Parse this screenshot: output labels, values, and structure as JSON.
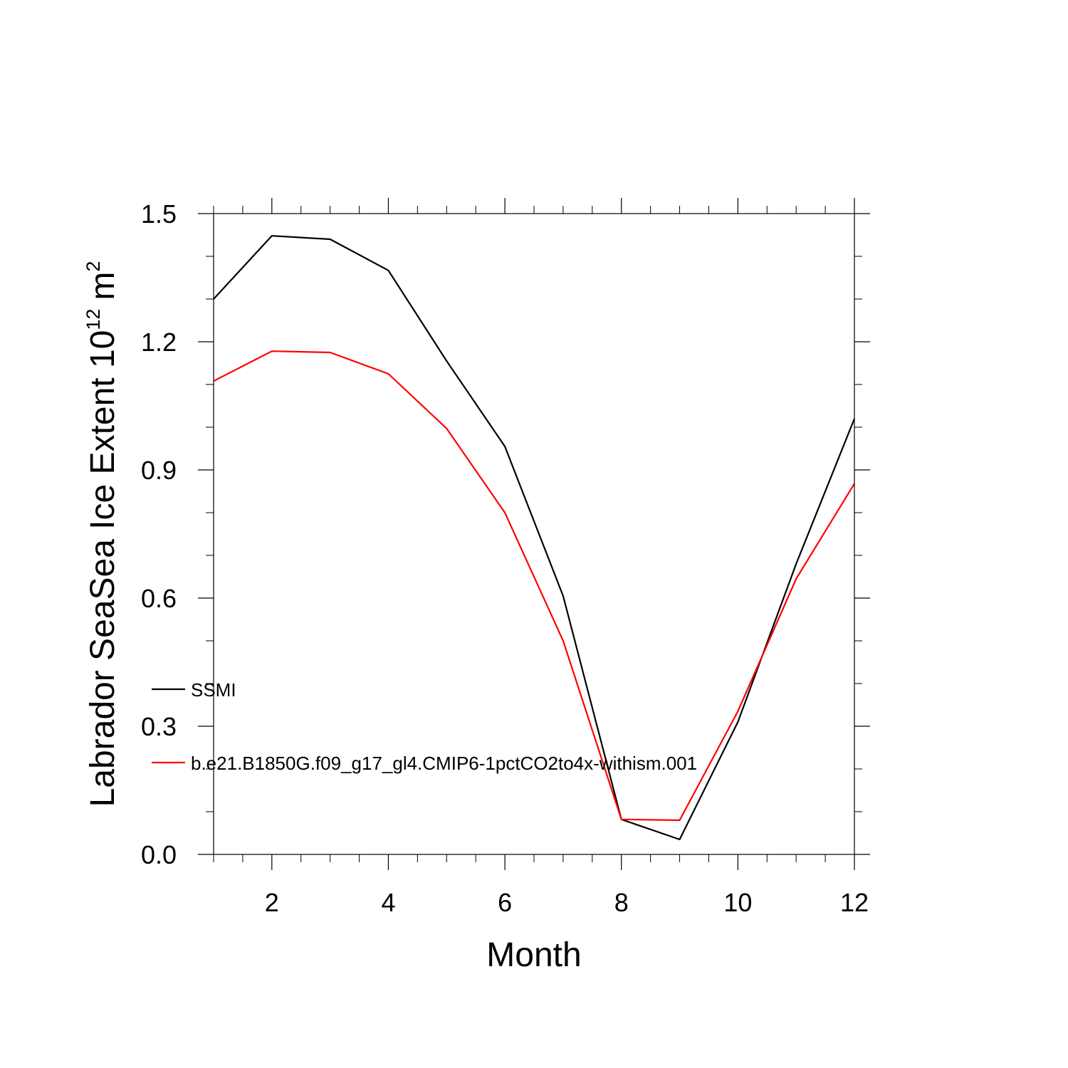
{
  "chart_data": {
    "type": "line",
    "title": "",
    "xlabel": "Month",
    "ylabel": "Labrador SeaSea Ice Extent 10",
    "ylabel_superscript": "12",
    "ylabel_unit": "m",
    "ylabel_unit_superscript": "2",
    "xlim": [
      1,
      12
    ],
    "ylim": [
      0,
      1.5
    ],
    "x_ticks": [
      2,
      4,
      6,
      8,
      10,
      12
    ],
    "x_tick_labels": [
      "2",
      "4",
      "6",
      "8",
      "10",
      "12"
    ],
    "y_ticks": [
      0,
      0.3,
      0.6,
      0.9,
      1.2,
      1.5
    ],
    "y_tick_labels": [
      "0.0",
      "0.3",
      "0.6",
      "0.9",
      "1.2",
      "1.5"
    ],
    "grid": false,
    "legend_position": "lower-left",
    "x": [
      1,
      2,
      3,
      4,
      5,
      6,
      7,
      8,
      9,
      10,
      11,
      12
    ],
    "series": [
      {
        "name": "SSMI",
        "color": "#000000",
        "values": [
          1.3,
          1.448,
          1.44,
          1.367,
          1.155,
          0.955,
          0.605,
          0.082,
          0.035,
          0.31,
          0.68,
          1.02
        ]
      },
      {
        "name": "b.e21.B1850G.f09_g17_gl4.CMIP6-1pctCO2to4x-withism.001",
        "color": "#ff0000",
        "values": [
          1.108,
          1.178,
          1.175,
          1.125,
          0.997,
          0.8,
          0.5,
          0.082,
          0.08,
          0.335,
          0.645,
          0.868
        ]
      }
    ]
  }
}
